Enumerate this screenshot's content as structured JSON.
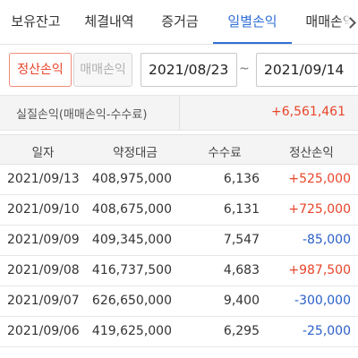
{
  "tabs": [
    {
      "label": "보유잔고",
      "active": false
    },
    {
      "label": "체결내역",
      "active": false
    },
    {
      "label": "증거금",
      "active": false
    },
    {
      "label": "일별손익",
      "active": true
    },
    {
      "label": "매매손익",
      "active": false
    }
  ],
  "filter": {
    "mode_on": "정산손익",
    "mode_off": "매매손익",
    "date_start": "2021/08/23",
    "separator": "~",
    "date_end": "2021/09/14"
  },
  "summary": {
    "label": "실질손익(매매손익-수수료)",
    "value": "+6,561,461"
  },
  "table": {
    "headers": [
      "일자",
      "약정대금",
      "수수료",
      "정산손익"
    ],
    "rows": [
      {
        "date": "2021/09/13",
        "amount": "408,975,000",
        "fee": "6,136",
        "pl": "+525,000",
        "sign": "pos"
      },
      {
        "date": "2021/09/10",
        "amount": "408,675,000",
        "fee": "6,131",
        "pl": "+725,000",
        "sign": "pos"
      },
      {
        "date": "2021/09/09",
        "amount": "409,345,000",
        "fee": "7,547",
        "pl": "-85,000",
        "sign": "neg"
      },
      {
        "date": "2021/09/08",
        "amount": "416,737,500",
        "fee": "4,683",
        "pl": "+987,500",
        "sign": "pos"
      },
      {
        "date": "2021/09/07",
        "amount": "626,650,000",
        "fee": "9,400",
        "pl": "-300,000",
        "sign": "neg"
      },
      {
        "date": "2021/09/06",
        "amount": "419,625,000",
        "fee": "6,295",
        "pl": "-25,000",
        "sign": "neg"
      }
    ]
  },
  "colors": {
    "accent": "#2f6fd6",
    "positive": "#e8452a",
    "negative": "#2a5fc8"
  }
}
